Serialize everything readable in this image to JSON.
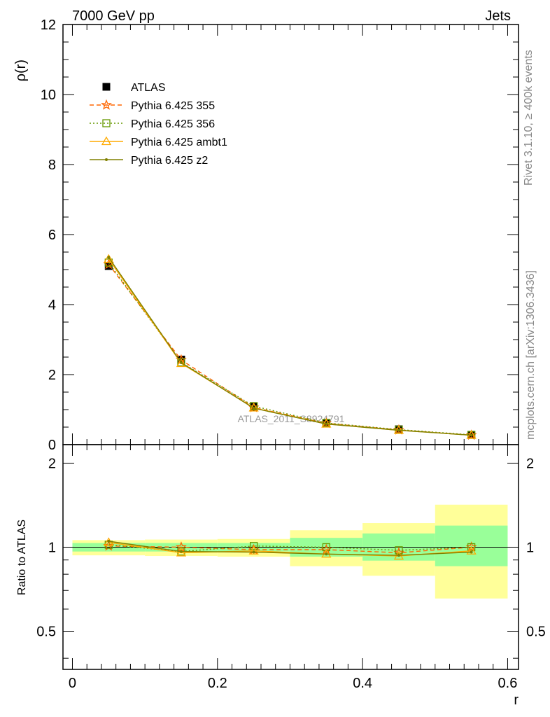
{
  "header": {
    "left": "7000 GeV pp",
    "right": "Jets"
  },
  "side_labels": {
    "top": "Rivet 3.1.10, ≥ 400k events",
    "bottom": "mcplots.cern.ch [arXiv:1306.3436]"
  },
  "watermark": "ATLAS_2011_S8924791",
  "chart_data": [
    {
      "type": "line",
      "ylabel": "ρ(r)",
      "xlim": [
        -0.013,
        0.615
      ],
      "ylim": [
        0,
        12
      ],
      "yticks": [
        "0",
        "2",
        "4",
        "6",
        "8",
        "10",
        "12"
      ],
      "x": [
        0.05,
        0.15,
        0.25,
        0.35,
        0.45,
        0.55
      ],
      "legend_position": "top-left",
      "series": [
        {
          "name": "ATLAS",
          "color": "#000000",
          "marker": "square",
          "values": [
            5.1,
            2.43,
            1.08,
            0.62,
            0.44,
            0.28
          ]
        },
        {
          "name": "Pythia 6.425 355",
          "color": "#ff6600",
          "marker": "star",
          "dash": "dashed",
          "values": [
            5.15,
            2.42,
            1.06,
            0.61,
            0.42,
            0.27
          ]
        },
        {
          "name": "Pythia 6.425 356",
          "color": "#669900",
          "marker": "open-square",
          "dash": "dotted",
          "values": [
            5.2,
            2.35,
            1.1,
            0.62,
            0.43,
            0.28
          ]
        },
        {
          "name": "Pythia 6.425 ambt1",
          "color": "#ffaa00",
          "marker": "open-triangle",
          "dash": "solid",
          "values": [
            5.3,
            2.32,
            1.05,
            0.59,
            0.41,
            0.27
          ]
        },
        {
          "name": "Pythia 6.425 z2",
          "color": "#808000",
          "marker": "dot",
          "dash": "solid",
          "values": [
            5.35,
            2.34,
            1.04,
            0.59,
            0.41,
            0.27
          ]
        }
      ]
    },
    {
      "type": "line",
      "xlabel": "r",
      "ylabel": "Ratio to ATLAS",
      "ylim": [
        0.365,
        2.33
      ],
      "yticks": [
        "0.5",
        "1",
        "2"
      ],
      "xticks": [
        "0",
        "0.2",
        "0.4",
        "0.6"
      ],
      "x": [
        0.05,
        0.15,
        0.25,
        0.35,
        0.45,
        0.55
      ],
      "bins": [
        [
          0.0,
          0.1
        ],
        [
          0.1,
          0.2
        ],
        [
          0.2,
          0.3
        ],
        [
          0.3,
          0.4
        ],
        [
          0.4,
          0.5
        ],
        [
          0.5,
          0.6
        ]
      ],
      "band_stat": [
        [
          0.965,
          1.035
        ],
        [
          0.965,
          1.035
        ],
        [
          0.965,
          1.035
        ],
        [
          0.925,
          1.08
        ],
        [
          0.895,
          1.12
        ],
        [
          0.855,
          1.195
        ]
      ],
      "band_total": [
        [
          0.935,
          1.06
        ],
        [
          0.93,
          1.065
        ],
        [
          0.925,
          1.07
        ],
        [
          0.855,
          1.15
        ],
        [
          0.79,
          1.22
        ],
        [
          0.655,
          1.42
        ]
      ],
      "band_colors": {
        "stat": "#99ff99",
        "total": "#ffff99"
      },
      "series": [
        {
          "name": "Pythia 6.425 355",
          "values": [
            1.01,
            1.0,
            0.98,
            0.98,
            0.955,
            1.0
          ]
        },
        {
          "name": "Pythia 6.425 356",
          "values": [
            1.02,
            0.965,
            1.01,
            1.0,
            0.975,
            1.0
          ]
        },
        {
          "name": "Pythia 6.425 ambt1",
          "values": [
            1.04,
            0.955,
            0.97,
            0.945,
            0.93,
            0.97
          ]
        },
        {
          "name": "Pythia 6.425 z2",
          "values": [
            1.05,
            0.965,
            0.96,
            0.945,
            0.935,
            0.96
          ]
        }
      ]
    }
  ]
}
